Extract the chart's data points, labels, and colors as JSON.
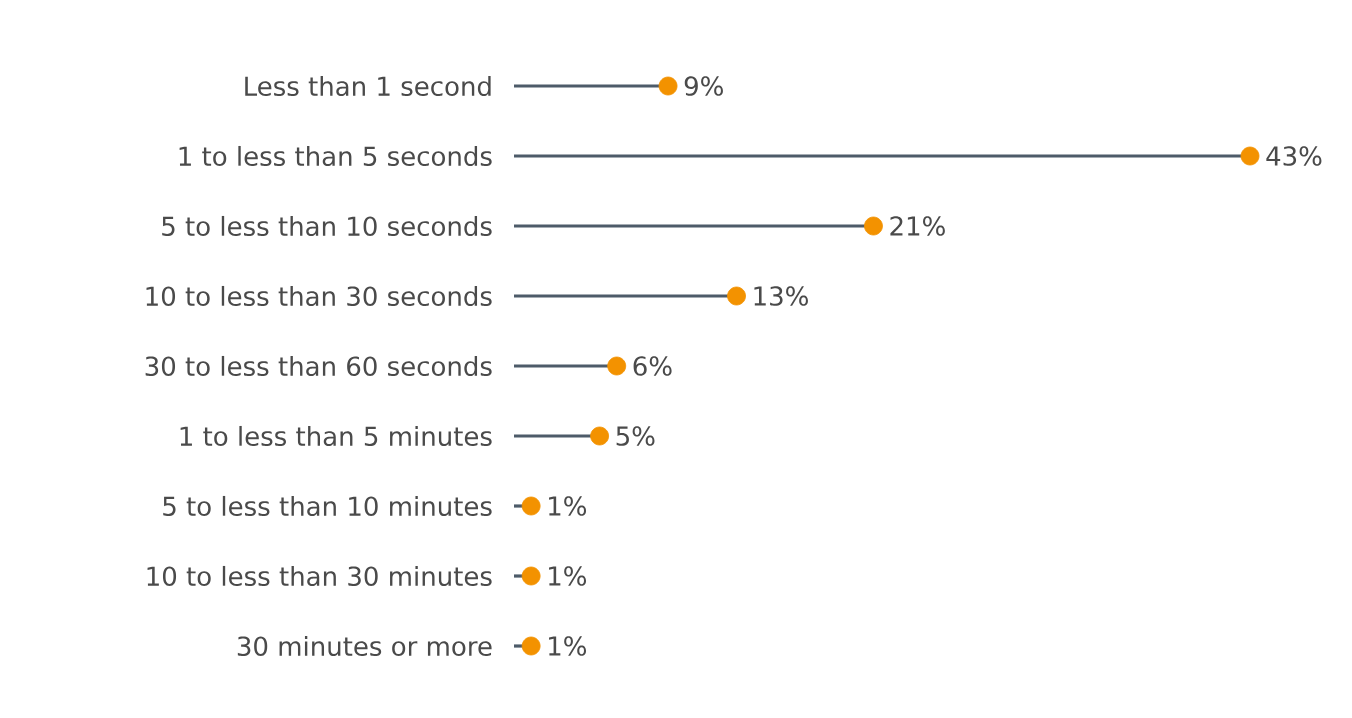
{
  "chart_data": {
    "type": "lollipop",
    "orientation": "horizontal",
    "categories": [
      "Less than 1 second",
      "1 to less than 5 seconds",
      "5 to less than 10 seconds",
      "10 to less than 30 seconds",
      "30 to less than 60 seconds",
      "1 to less than 5 minutes",
      "5 to less than 10 minutes",
      "10 to less than 30 minutes",
      "30 minutes or more"
    ],
    "values": [
      9,
      43,
      21,
      13,
      6,
      5,
      1,
      1,
      1
    ],
    "value_labels": [
      "9%",
      "43%",
      "21%",
      "13%",
      "6%",
      "5%",
      "1%",
      "1%",
      "1%"
    ],
    "color": "#f39200",
    "tick_labels": "y"
  }
}
